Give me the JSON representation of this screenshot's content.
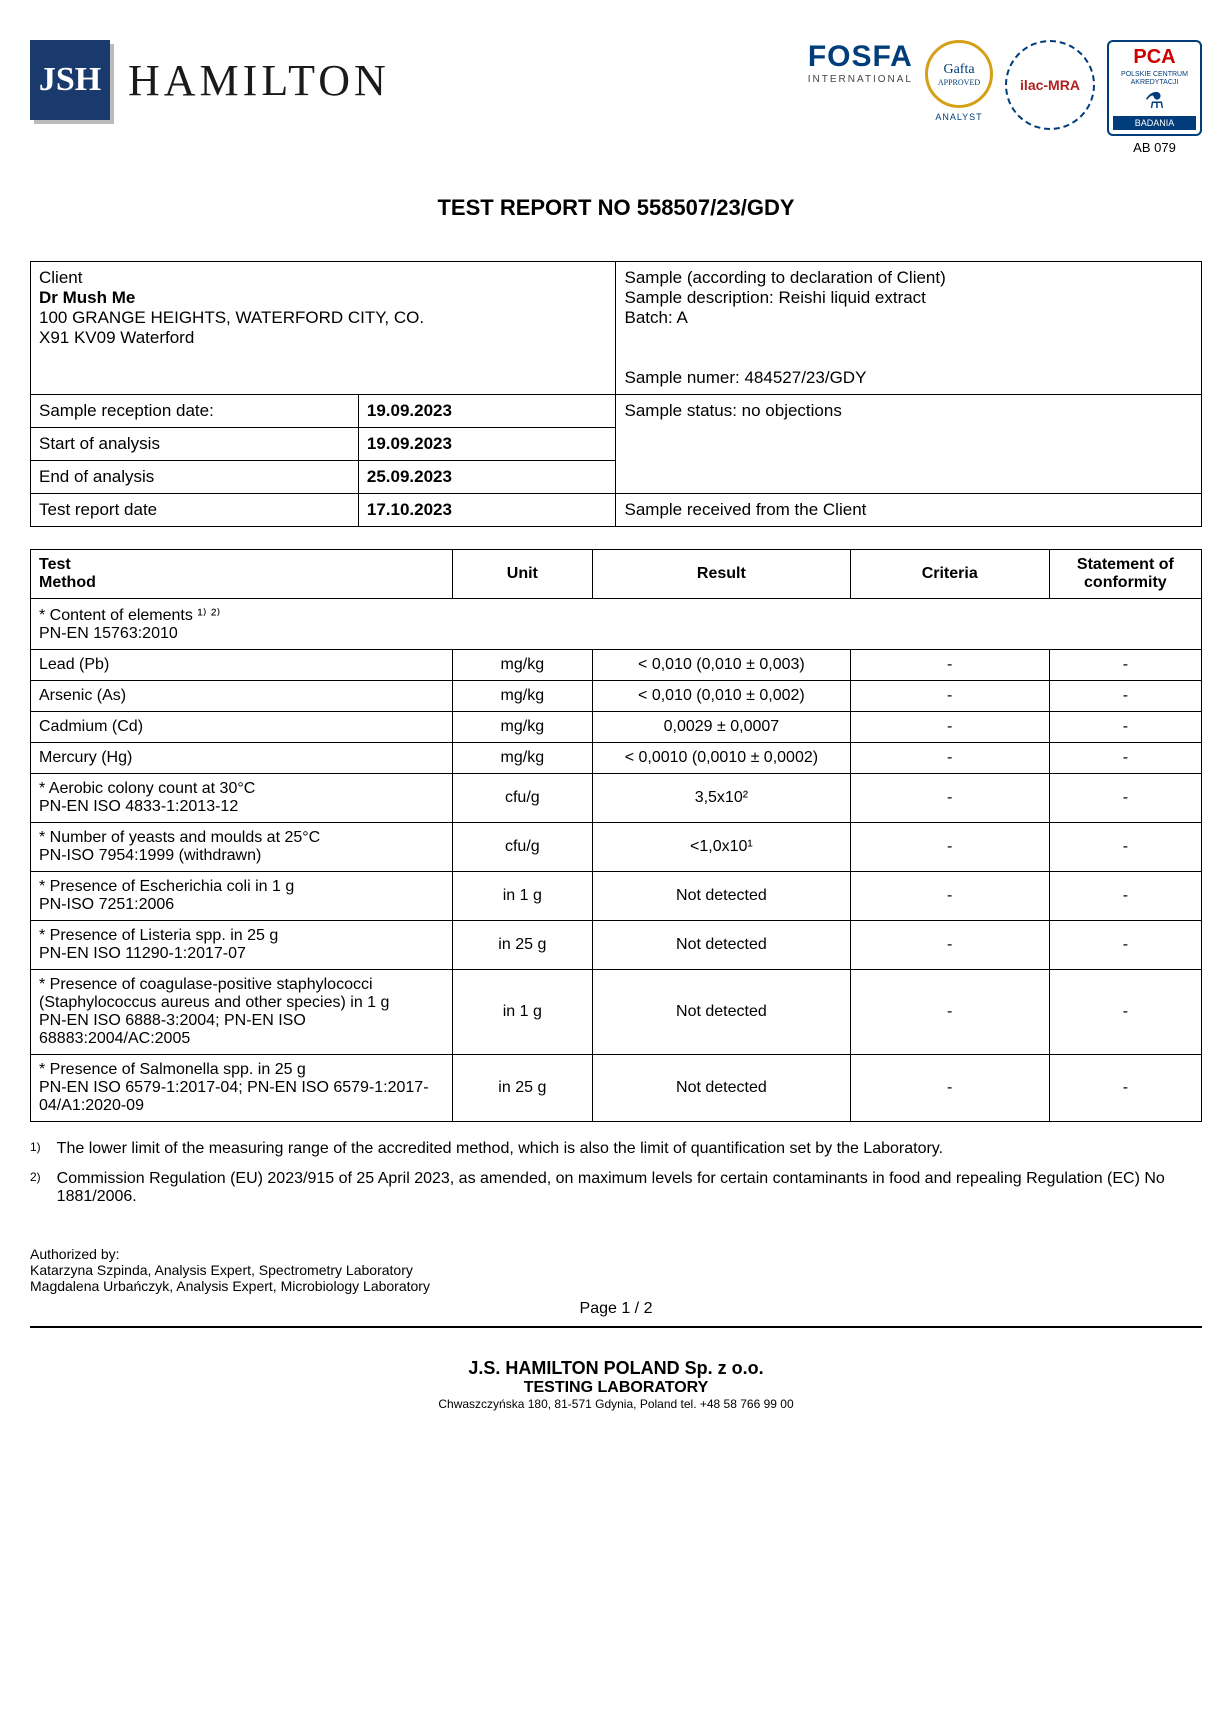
{
  "header": {
    "company_logo_initials": "JSH",
    "company_name": "HAMILTON",
    "fosfa_main": "FOSFA",
    "fosfa_sub": "INTERNATIONAL",
    "gafta_name": "Gafta",
    "gafta_approved": "APPROVED",
    "gafta_sub": "ANALYST",
    "ilac_text": "ilac-MRA",
    "pca_top": "PCA",
    "pca_mid": "POLSKIE CENTRUM AKREDYTACJI",
    "pca_badania": "BADANIA",
    "pca_code": "AB 079"
  },
  "report_title": "TEST REPORT NO 558507/23/GDY",
  "client": {
    "label": "Client",
    "name": "Dr Mush Me",
    "addr1": "100 GRANGE HEIGHTS, WATERFORD CITY, CO.",
    "addr2": "X91 KV09 Waterford"
  },
  "sample": {
    "header": "Sample (according to declaration of Client)",
    "desc_label": "Sample description: Reishi liquid extract",
    "batch": "Batch: A",
    "number": "Sample numer: 484527/23/GDY",
    "status": "Sample status: no objections",
    "received_from": "Sample received from the Client"
  },
  "dates": {
    "reception_label": "Sample reception date:",
    "reception": "19.09.2023",
    "start_label": "Start of analysis",
    "start": "19.09.2023",
    "end_label": "End of analysis",
    "end": "25.09.2023",
    "report_label": "Test report date",
    "report": "17.10.2023"
  },
  "results_header": {
    "test": "Test\nMethod",
    "unit": "Unit",
    "result": "Result",
    "criteria": "Criteria",
    "conformity": "Statement of conformity"
  },
  "section_elements": "* Content of elements ¹⁾ ²⁾\n  PN-EN 15763:2010",
  "rows": [
    {
      "test": "Lead (Pb)",
      "unit": "mg/kg",
      "result": "< 0,010 (0,010 ± 0,003)",
      "criteria": "-",
      "conf": "-"
    },
    {
      "test": "Arsenic (As)",
      "unit": "mg/kg",
      "result": "< 0,010 (0,010 ± 0,002)",
      "criteria": "-",
      "conf": "-"
    },
    {
      "test": "Cadmium (Cd)",
      "unit": "mg/kg",
      "result": "0,0029 ± 0,0007",
      "criteria": "-",
      "conf": "-"
    },
    {
      "test": "Mercury (Hg)",
      "unit": "mg/kg",
      "result": "< 0,0010 (0,0010 ± 0,0002)",
      "criteria": "-",
      "conf": "-"
    },
    {
      "test": "* Aerobic colony count at 30°C\n  PN-EN ISO 4833-1:2013-12",
      "unit": "cfu/g",
      "result": "3,5x10²",
      "criteria": "-",
      "conf": "-"
    },
    {
      "test": "* Number of yeasts and moulds at 25°C\n  PN-ISO 7954:1999 (withdrawn)",
      "unit": "cfu/g",
      "result": "<1,0x10¹",
      "criteria": "-",
      "conf": "-"
    },
    {
      "test": "* Presence of Escherichia coli in 1 g\n  PN-ISO 7251:2006",
      "unit": "in 1 g",
      "result": "Not detected",
      "criteria": "-",
      "conf": "-"
    },
    {
      "test": "* Presence of Listeria spp. in 25 g\n  PN-EN ISO 11290-1:2017-07",
      "unit": "in 25 g",
      "result": "Not detected",
      "criteria": "-",
      "conf": "-"
    },
    {
      "test": "* Presence of coagulase-positive staphylococci (Staphylococcus aureus and other species) in 1 g\n  PN-EN ISO 6888-3:2004; PN-EN ISO 68883:2004/AC:2005",
      "unit": "in 1 g",
      "result": "Not detected",
      "criteria": "-",
      "conf": "-"
    },
    {
      "test": "* Presence of Salmonella spp. in 25 g\n  PN-EN ISO 6579-1:2017-04; PN-EN ISO 6579-1:2017-04/A1:2020-09",
      "unit": "in 25 g",
      "result": "Not detected",
      "criteria": "-",
      "conf": "-"
    }
  ],
  "footnotes": {
    "fn1_mark": "1)",
    "fn1": "The lower limit of the measuring range of the accredited method, which is also the limit of quantification set by the Laboratory.",
    "fn2_mark": "2)",
    "fn2": "Commission Regulation (EU) 2023/915 of 25 April 2023, as amended, on maximum levels for certain contaminants in food and repealing Regulation (EC) No 1881/2006."
  },
  "auth": {
    "label": "Authorized by:",
    "line1": "Katarzyna Szpinda, Analysis Expert, Spectrometry Laboratory",
    "line2": "Magdalena Urbańczyk, Analysis Expert, Microbiology Laboratory"
  },
  "page": "Page 1 / 2",
  "footer": {
    "l1": "J.S. HAMILTON POLAND Sp. z o.o.",
    "l2": "TESTING LABORATORY",
    "l3": "Chwaszczyńska 180, 81-571 Gdynia, Poland tel. +48 58 766 99 00"
  }
}
